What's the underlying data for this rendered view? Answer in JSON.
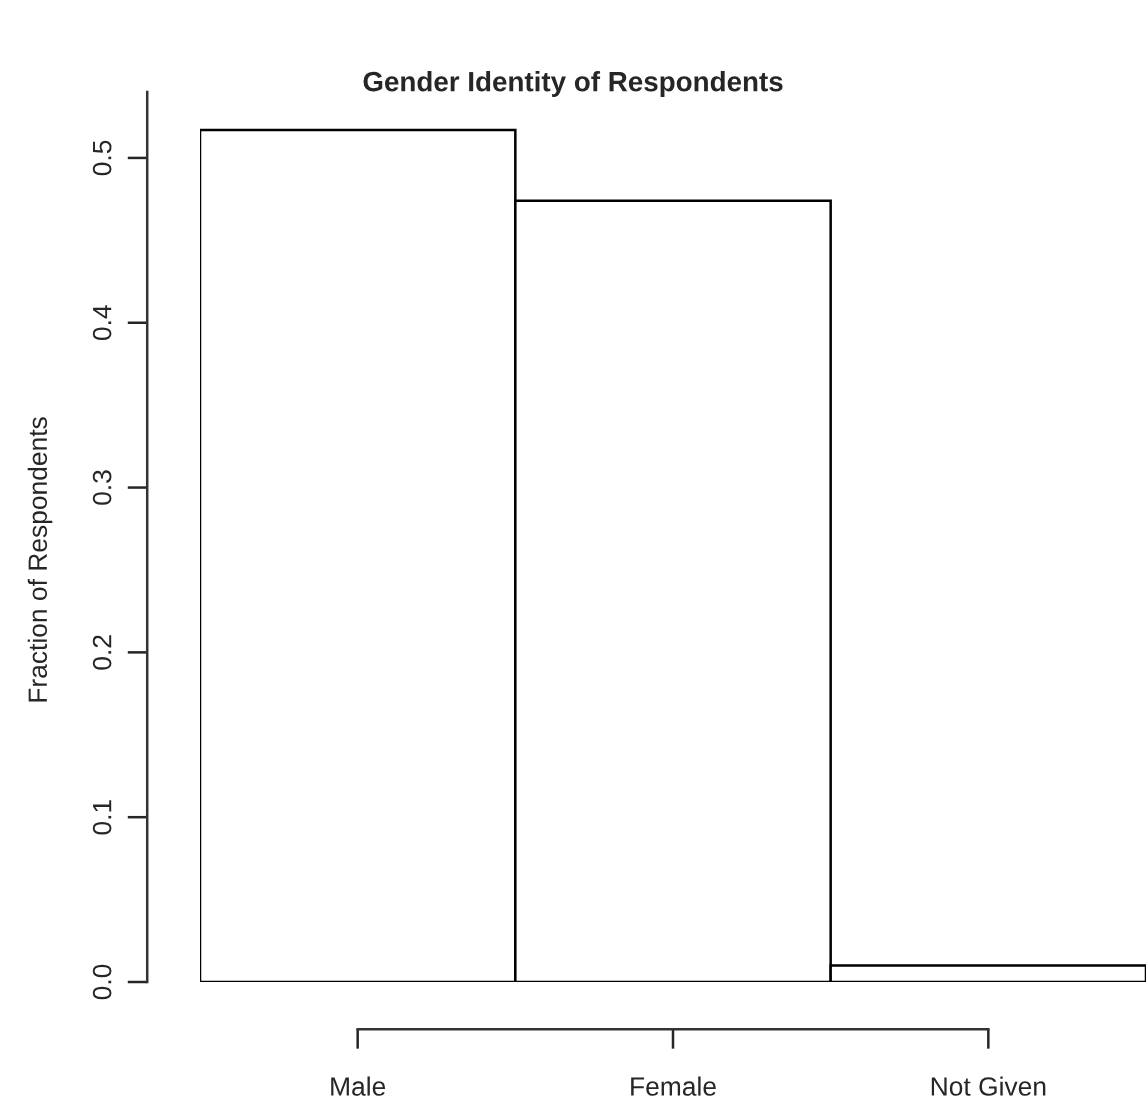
{
  "chart_data": {
    "type": "bar",
    "title": "Gender Identity of Respondents",
    "ylabel": "Fraction of Respondents",
    "categories": [
      "Male",
      "Female",
      "Not Given"
    ],
    "values": [
      0.517,
      0.474,
      0.01
    ],
    "color": "#ffffff",
    "ylim": [
      0,
      0.54
    ],
    "yticks": [
      {
        "value": 0,
        "label": "0.0"
      },
      {
        "value": 0.1,
        "label": "0.1"
      },
      {
        "value": 0.2,
        "label": "0.2"
      },
      {
        "value": 0.3,
        "label": "0.3"
      },
      {
        "value": 0.4,
        "label": "0.4"
      },
      {
        "value": 0.5,
        "label": "0.5"
      }
    ],
    "grid": false,
    "legend": false
  }
}
